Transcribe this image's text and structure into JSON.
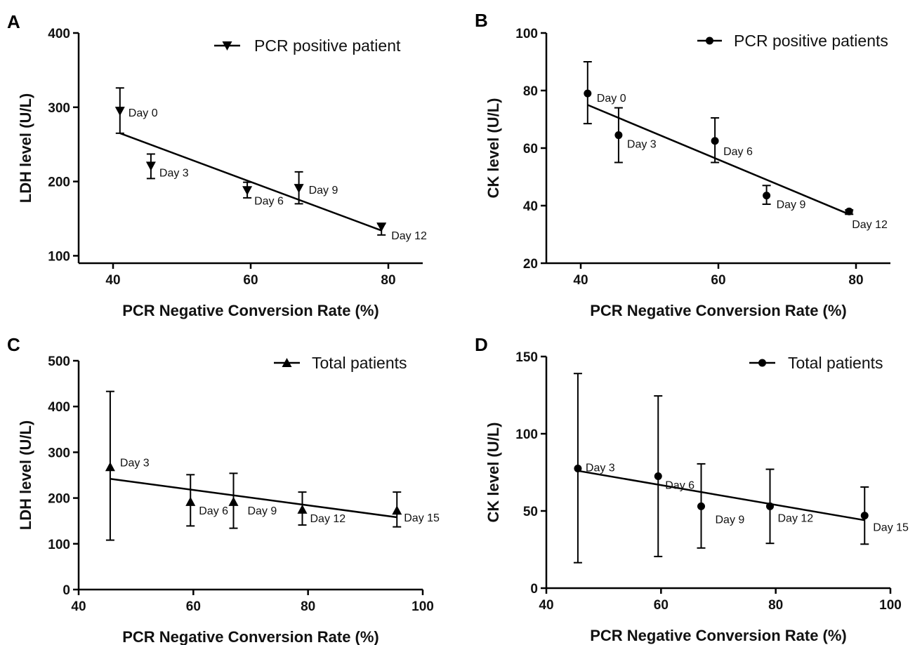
{
  "chart_data": [
    {
      "panel": "A",
      "type": "scatter",
      "xlabel": "PCR Negative Conversion Rate (%)",
      "ylabel": "LDH level (U/L)",
      "xlim": [
        35,
        85
      ],
      "ylim": [
        90,
        400
      ],
      "xticks": [
        40,
        60,
        80
      ],
      "yticks": [
        100,
        200,
        300,
        400
      ],
      "legend": "top-right",
      "marker": "triangle-down",
      "series": [
        {
          "name": "PCR positive patient",
          "points": [
            {
              "label": "Day 0",
              "x": 41,
              "y": 295,
              "err_low": 265,
              "err_high": 326
            },
            {
              "label": "Day 3",
              "x": 45.5,
              "y": 221,
              "err_low": 204,
              "err_high": 237
            },
            {
              "label": "Day 6",
              "x": 59.5,
              "y": 188,
              "err_low": 178,
              "err_high": 199
            },
            {
              "label": "Day 9",
              "x": 67,
              "y": 191,
              "err_low": 170,
              "err_high": 213
            },
            {
              "label": "Day 12",
              "x": 79,
              "y": 139,
              "err_low": 128,
              "err_high": 143
            }
          ],
          "fit_line": {
            "x": [
              41,
              79
            ],
            "y": [
              265,
              134
            ]
          }
        }
      ]
    },
    {
      "panel": "B",
      "type": "scatter",
      "xlabel": "PCR Negative Conversion Rate (%)",
      "ylabel": "CK level (U/L)",
      "xlim": [
        35,
        85
      ],
      "ylim": [
        20,
        100
      ],
      "xticks": [
        40,
        60,
        80
      ],
      "yticks": [
        20,
        40,
        60,
        80,
        100
      ],
      "legend": "top-right",
      "marker": "circle",
      "series": [
        {
          "name": "PCR positive patients",
          "points": [
            {
              "label": "Day 0",
              "x": 41,
              "y": 79,
              "err_low": 68.5,
              "err_high": 90
            },
            {
              "label": "Day 3",
              "x": 45.5,
              "y": 64.5,
              "err_low": 55,
              "err_high": 74
            },
            {
              "label": "Day 6",
              "x": 59.5,
              "y": 62.5,
              "err_low": 55,
              "err_high": 70.5
            },
            {
              "label": "Day 9",
              "x": 67,
              "y": 43.5,
              "err_low": 40.5,
              "err_high": 47
            },
            {
              "label": "Day 12",
              "x": 79,
              "y": 38,
              "err_low": 37,
              "err_high": 38.5
            }
          ],
          "fit_line": {
            "x": [
              41,
              79
            ],
            "y": [
              75,
              37
            ]
          }
        }
      ]
    },
    {
      "panel": "C",
      "type": "scatter",
      "xlabel": "PCR Negative Conversion Rate (%)",
      "ylabel": "LDH level (U/L)",
      "xlim": [
        40,
        100
      ],
      "ylim": [
        0,
        500
      ],
      "xticks": [
        40,
        60,
        80,
        100
      ],
      "yticks": [
        0,
        100,
        200,
        300,
        400,
        500
      ],
      "legend": "top-right",
      "marker": "triangle-up",
      "series": [
        {
          "name": "Total patients",
          "points": [
            {
              "label": "Day 3",
              "x": 45.5,
              "y": 268,
              "err_low": 108,
              "err_high": 433
            },
            {
              "label": "Day 6",
              "x": 59.5,
              "y": 192,
              "err_low": 139,
              "err_high": 251
            },
            {
              "label": "Day 9",
              "x": 67,
              "y": 192,
              "err_low": 134,
              "err_high": 254
            },
            {
              "label": "Day 12",
              "x": 79,
              "y": 175,
              "err_low": 141,
              "err_high": 213
            },
            {
              "label": "Day 15",
              "x": 95.5,
              "y": 173,
              "err_low": 137,
              "err_high": 213
            }
          ],
          "fit_line": {
            "x": [
              45.5,
              95.5
            ],
            "y": [
              242,
              158
            ]
          }
        }
      ]
    },
    {
      "panel": "D",
      "type": "scatter",
      "xlabel": "PCR Negative Conversion Rate (%)",
      "ylabel": "CK level (U/L)",
      "xlim": [
        40,
        100
      ],
      "ylim": [
        0,
        150
      ],
      "xticks": [
        40,
        60,
        80,
        100
      ],
      "yticks": [
        0,
        50,
        100,
        150
      ],
      "legend": "top-right",
      "marker": "circle",
      "series": [
        {
          "name": "Total patients",
          "points": [
            {
              "label": "Day 3",
              "x": 45.5,
              "y": 77.5,
              "err_low": 16.5,
              "err_high": 139
            },
            {
              "label": "Day 6",
              "x": 59.5,
              "y": 72.5,
              "err_low": 20.5,
              "err_high": 124.5
            },
            {
              "label": "Day 9",
              "x": 67,
              "y": 53,
              "err_low": 26,
              "err_high": 80.5
            },
            {
              "label": "Day 12",
              "x": 79,
              "y": 53,
              "err_low": 29,
              "err_high": 77
            },
            {
              "label": "Day 15",
              "x": 95.5,
              "y": 47,
              "err_low": 28.5,
              "err_high": 65.5
            }
          ],
          "fit_line": {
            "x": [
              45.5,
              95.5
            ],
            "y": [
              76,
              44
            ]
          }
        }
      ]
    }
  ]
}
